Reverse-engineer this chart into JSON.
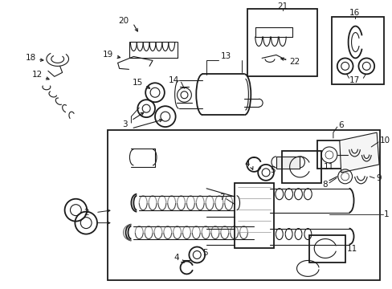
{
  "bg": "#ffffff",
  "dark": "#1a1a1a",
  "gray": "#888888",
  "fig_w": 4.89,
  "fig_h": 3.6,
  "dpi": 100,
  "lw": 0.8,
  "lw_thick": 1.3,
  "fs": 7.5
}
